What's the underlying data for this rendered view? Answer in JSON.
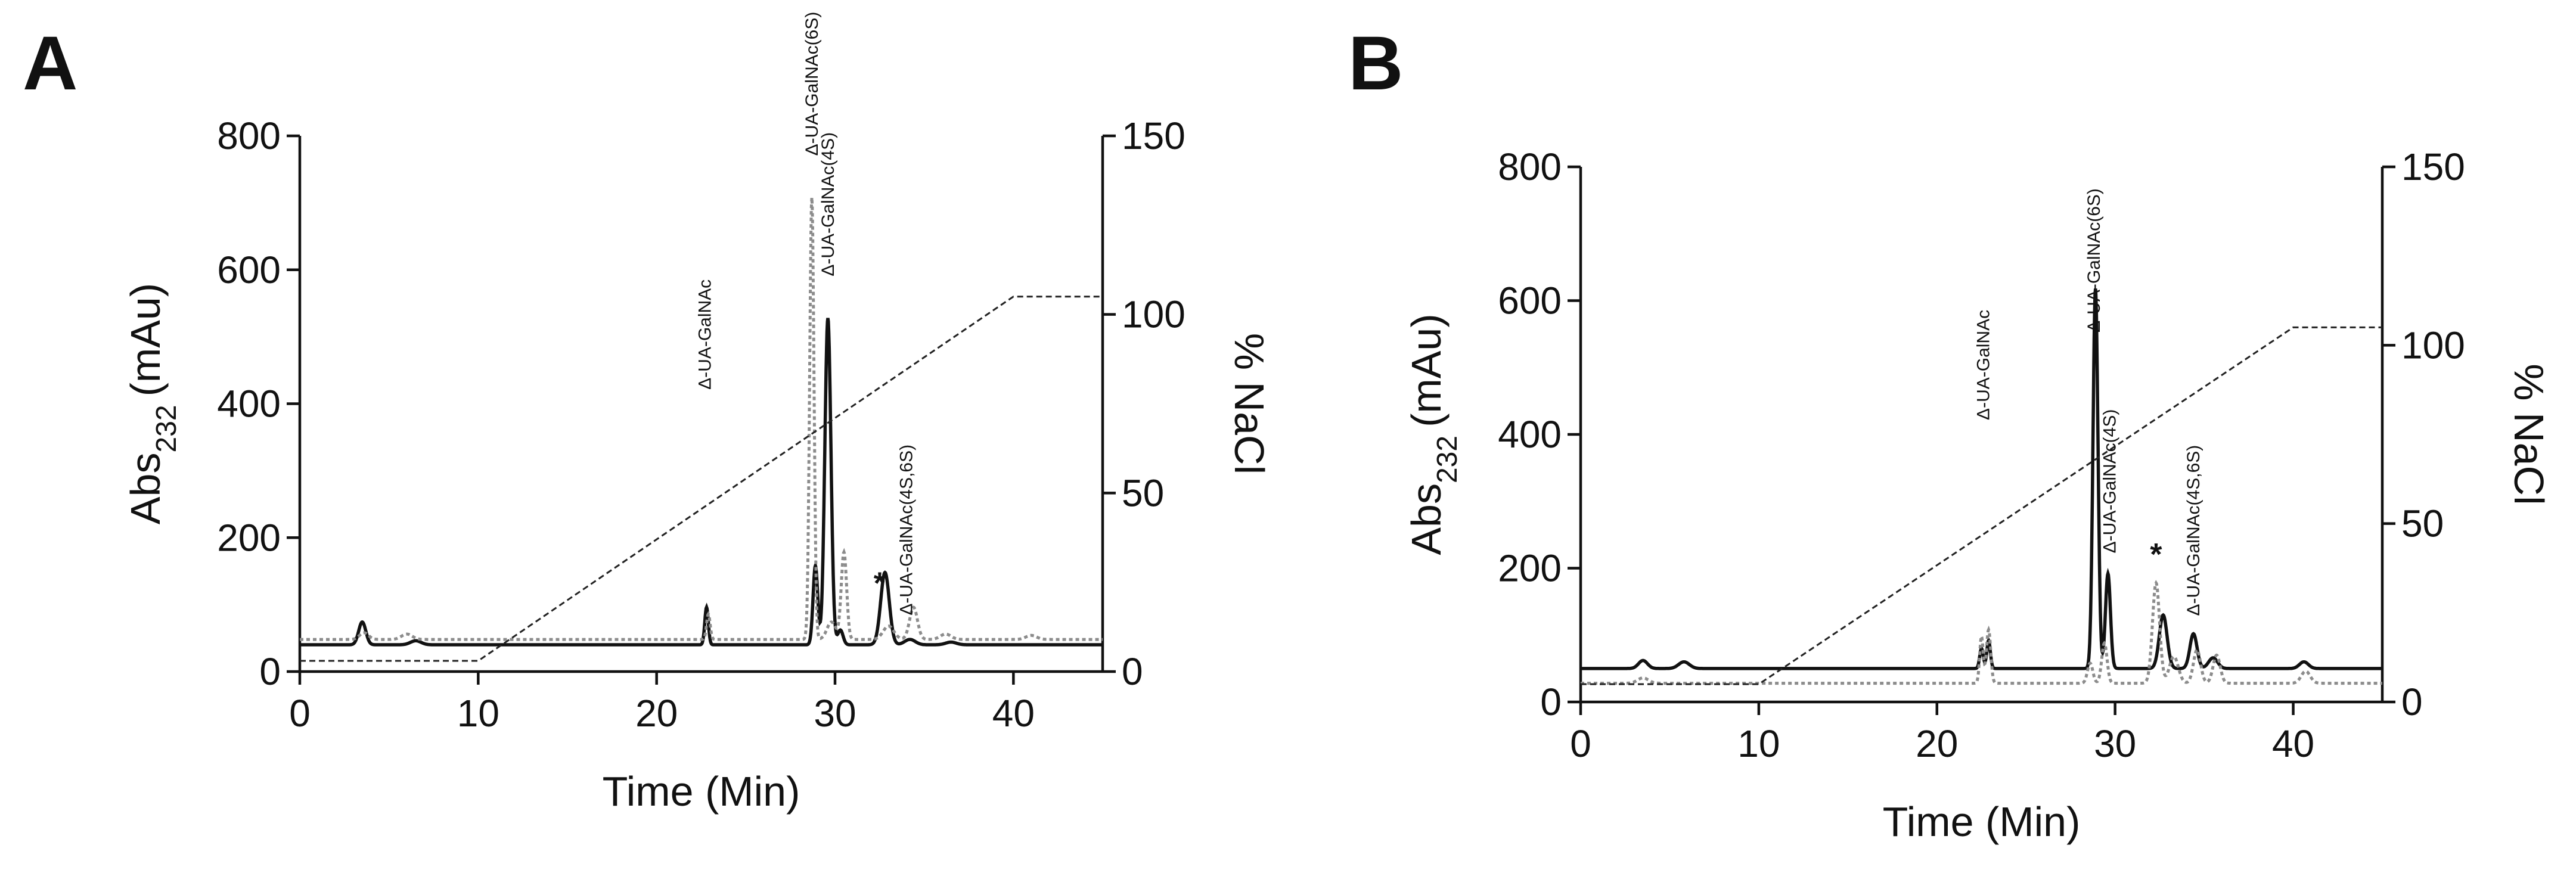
{
  "chart_data": [
    {
      "panel": "A",
      "type": "line",
      "xlabel": "Time (Min)",
      "ylabel_main": "Abs",
      "ylabel_sub": "232",
      "ylabel_unit": "(mAu)",
      "y2label": "% NaCl",
      "xlim": [
        0,
        45
      ],
      "ylim": [
        0,
        800
      ],
      "y2lim": [
        0,
        150
      ],
      "xticks": [
        0,
        10,
        20,
        30,
        40
      ],
      "yticks": [
        0,
        200,
        400,
        600,
        800
      ],
      "y2ticks": [
        0,
        50,
        100,
        150
      ],
      "series": [
        {
          "role": "solid",
          "axis": "left",
          "color": "#111111",
          "baseline": 40,
          "peaks": [
            [
              3.5,
              34,
              0.2
            ],
            [
              6.5,
              6,
              0.3
            ],
            [
              22.8,
              56,
              0.1
            ],
            [
              28.9,
              118,
              0.13
            ],
            [
              29.6,
              488,
              0.17
            ],
            [
              30.3,
              22,
              0.15
            ],
            [
              32.8,
              108,
              0.24
            ],
            [
              34.2,
              8,
              0.3
            ],
            [
              36.5,
              4,
              0.3
            ]
          ]
        },
        {
          "role": "dotted",
          "axis": "left",
          "color": "#8c8c8c",
          "baseline": 48,
          "peaks": [
            [
              3.6,
              10,
              0.25
            ],
            [
              6.0,
              8,
              0.3
            ],
            [
              22.9,
              38,
              0.1
            ],
            [
              28.7,
              660,
              0.12
            ],
            [
              29.8,
              26,
              0.25
            ],
            [
              30.5,
              130,
              0.15
            ],
            [
              33.0,
              20,
              0.3
            ],
            [
              34.4,
              48,
              0.22
            ],
            [
              36.2,
              8,
              0.3
            ],
            [
              41.0,
              6,
              0.3
            ]
          ]
        },
        {
          "role": "gradient",
          "axis": "right",
          "color": "#222222",
          "points": [
            [
              0,
              3
            ],
            [
              10,
              3
            ],
            [
              40,
              105
            ],
            [
              45,
              105
            ]
          ]
        }
      ],
      "annotations": [
        {
          "text": "Δ-UA-GalNAc",
          "x": 22.7
        },
        {
          "text": "Δ-UA-GalNAc(6S)",
          "x": 28.7
        },
        {
          "text": "Δ-UA-GalNAc(4S)",
          "x": 29.6
        },
        {
          "text": "*",
          "x": 32.5
        },
        {
          "text": "Δ-UA-GalNAc(4S,6S)",
          "x": 34.0
        }
      ]
    },
    {
      "panel": "B",
      "type": "line",
      "xlabel": "Time (Min)",
      "ylabel_main": "Abs",
      "ylabel_sub": "232",
      "ylabel_unit": "(mAu)",
      "y2label": "% NaCl",
      "xlim": [
        0,
        45
      ],
      "ylim": [
        0,
        800
      ],
      "y2lim": [
        0,
        150
      ],
      "xticks": [
        0,
        10,
        20,
        30,
        40
      ],
      "yticks": [
        0,
        200,
        400,
        600,
        800
      ],
      "y2ticks": [
        0,
        50,
        100,
        150
      ],
      "series": [
        {
          "role": "solid",
          "axis": "left",
          "color": "#111111",
          "baseline": 50,
          "peaks": [
            [
              3.5,
              12,
              0.25
            ],
            [
              5.8,
              10,
              0.3
            ],
            [
              22.5,
              30,
              0.1
            ],
            [
              22.9,
              42,
              0.1
            ],
            [
              28.9,
              568,
              0.14
            ],
            [
              29.6,
              142,
              0.14
            ],
            [
              32.7,
              80,
              0.22
            ],
            [
              34.4,
              52,
              0.2
            ],
            [
              35.5,
              16,
              0.25
            ],
            [
              40.6,
              10,
              0.25
            ]
          ]
        },
        {
          "role": "dotted",
          "axis": "left",
          "color": "#8c8c8c",
          "baseline": 28,
          "peaks": [
            [
              3.5,
              8,
              0.3
            ],
            [
              22.5,
              70,
              0.1
            ],
            [
              22.9,
              80,
              0.12
            ],
            [
              28.6,
              30,
              0.15
            ],
            [
              29.4,
              60,
              0.15
            ],
            [
              32.3,
              150,
              0.2
            ],
            [
              33.3,
              40,
              0.25
            ],
            [
              34.6,
              50,
              0.2
            ],
            [
              35.7,
              42,
              0.2
            ],
            [
              40.7,
              18,
              0.25
            ]
          ]
        },
        {
          "role": "gradient",
          "axis": "right",
          "color": "#222222",
          "points": [
            [
              0,
              5
            ],
            [
              10,
              5
            ],
            [
              40,
              105
            ],
            [
              45,
              105
            ]
          ]
        }
      ],
      "annotations": [
        {
          "text": "Δ-UA-GalNAc",
          "x": 22.6
        },
        {
          "text": "Δ-UA-GalNAc(6S)",
          "x": 28.8
        },
        {
          "text": "Δ-UA-GalNAc(4S)",
          "x": 29.7
        },
        {
          "text": "*",
          "x": 32.3
        },
        {
          "text": "Δ-UA-GalNAc(4S,6S)",
          "x": 34.4
        }
      ]
    }
  ]
}
